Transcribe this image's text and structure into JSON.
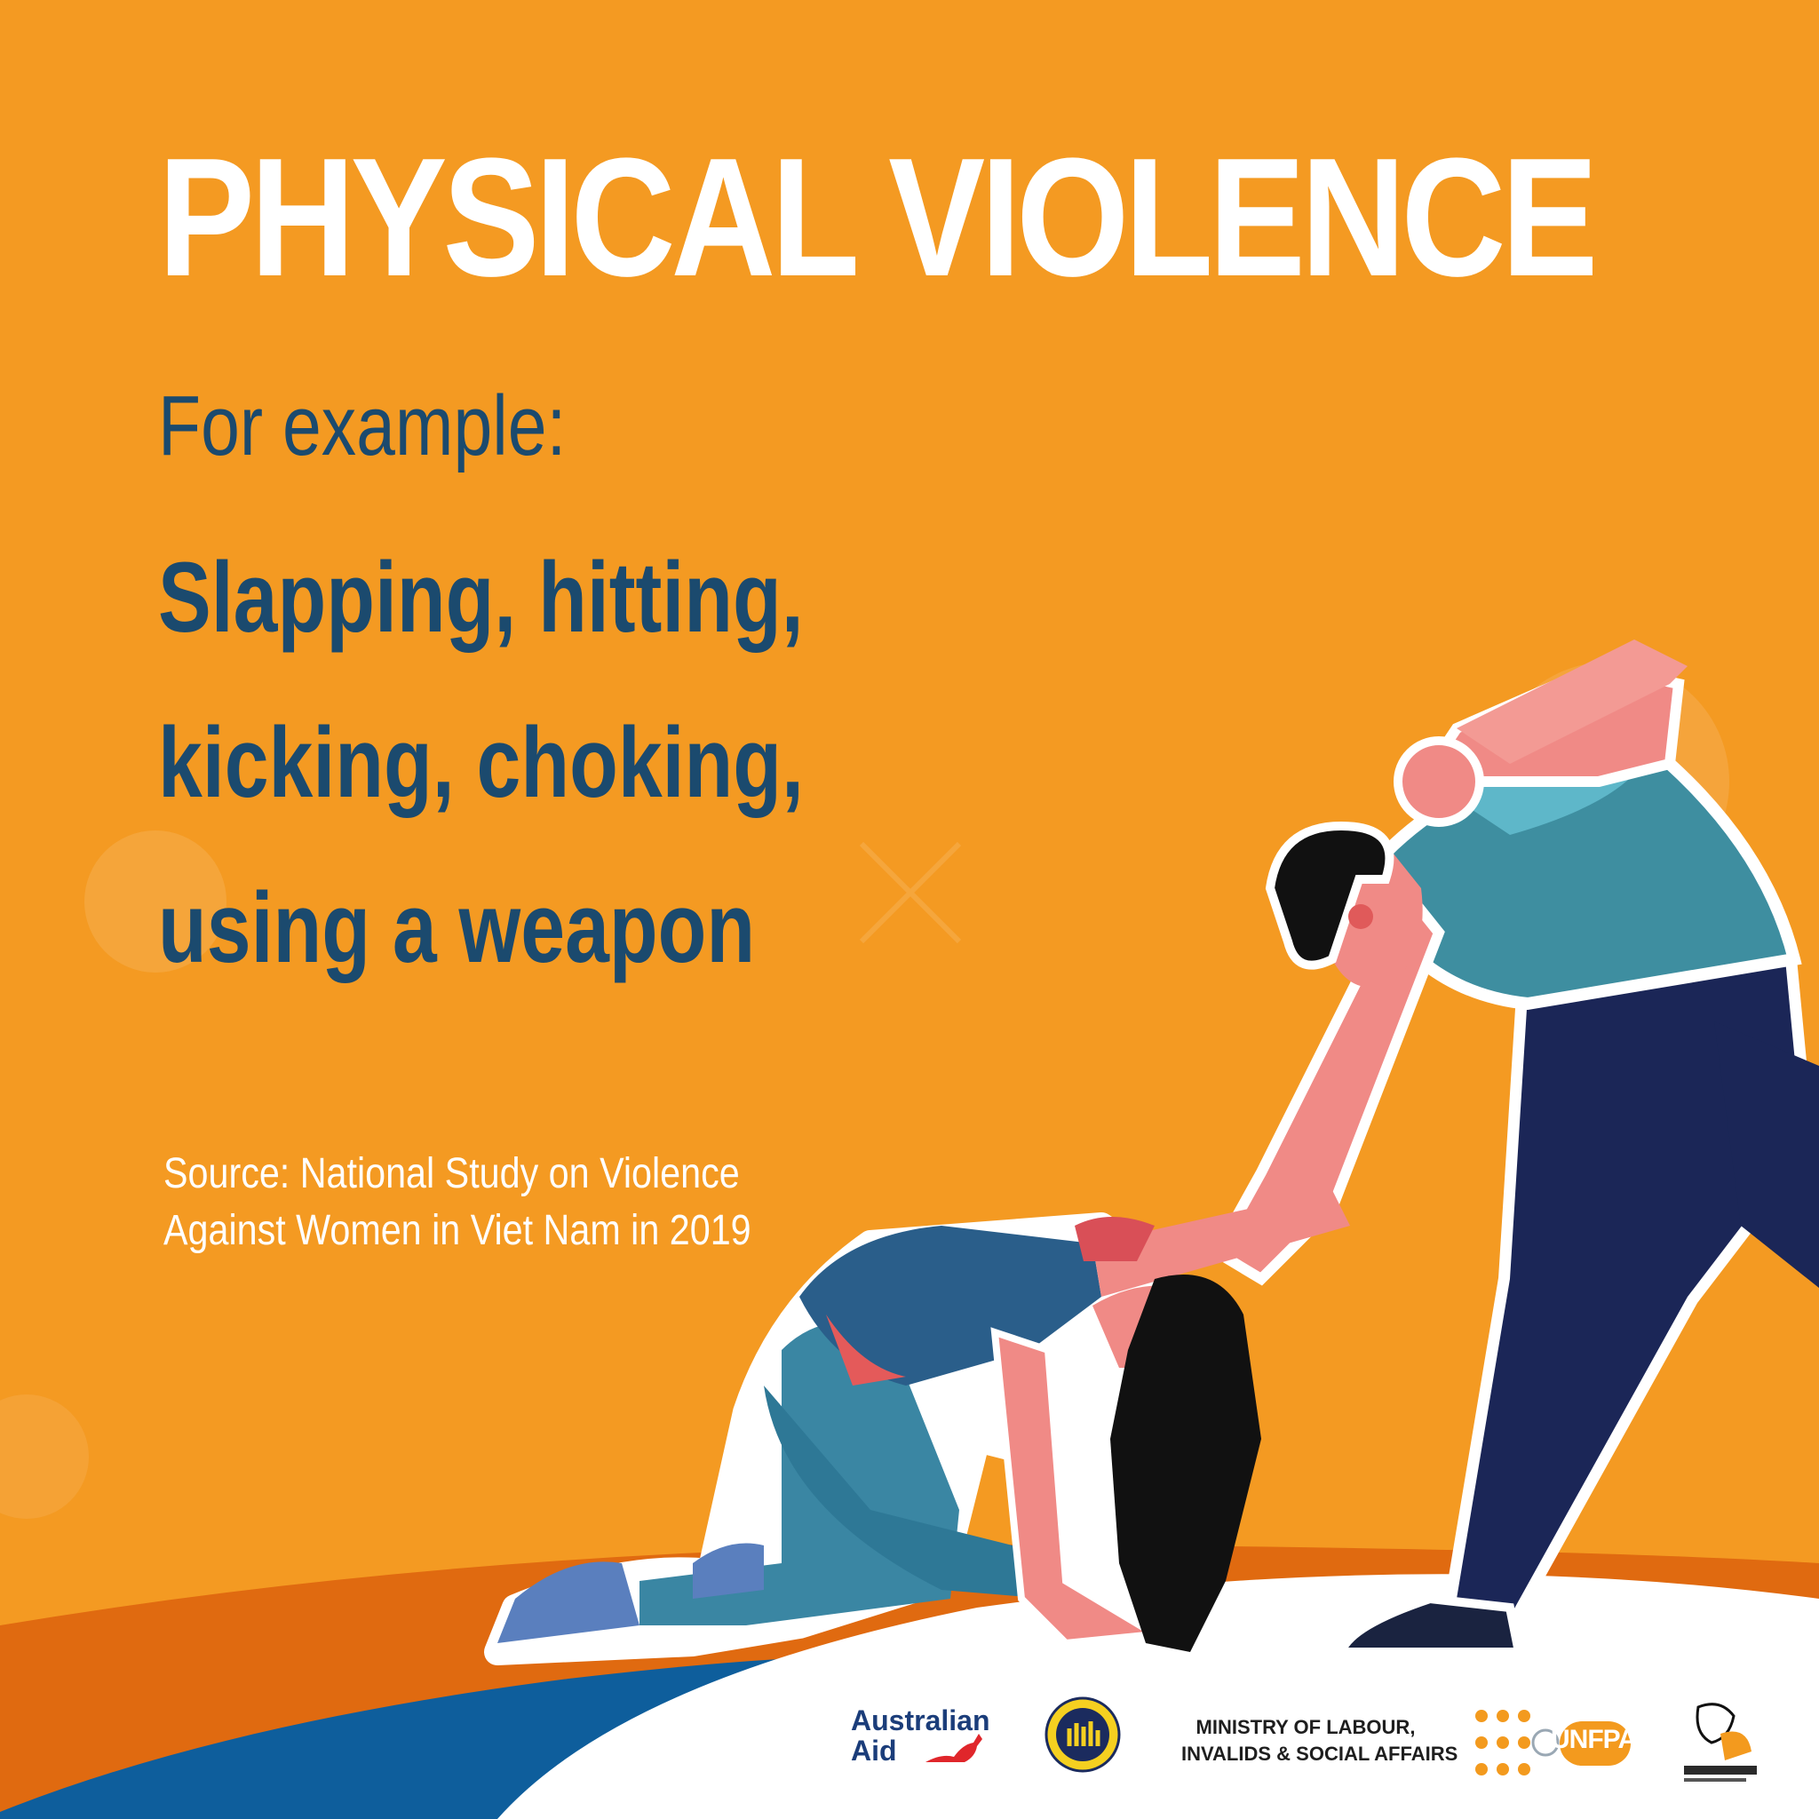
{
  "poster": {
    "title": "PHYSICAL VIOLENCE",
    "subtitle": "For example:",
    "examples": [
      "Slapping, hitting,",
      "kicking, choking,",
      "using a weapon"
    ],
    "source": [
      "Source: National Study on Violence",
      "Against Women in Viet Nam in 2019"
    ]
  },
  "logos": {
    "australian_aid": [
      "Australian",
      "Aid"
    ],
    "molisa": [
      "MINISTRY OF LABOUR,",
      "INVALIDS & SOCIAL AFFAIRS"
    ],
    "unfpa": "UNFPA"
  },
  "colors": {
    "background": "#F49A22",
    "title": "#FFFFFF",
    "body_text": "#1B4A6E",
    "dark_orange": "#E06A10",
    "blue_wave": "#0E5E9C"
  }
}
